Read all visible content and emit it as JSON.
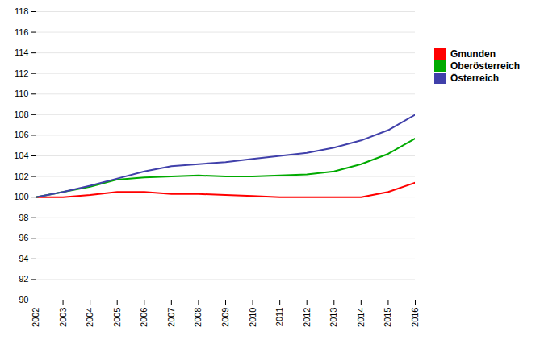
{
  "chart_data": {
    "type": "line",
    "x": [
      2002,
      2003,
      2004,
      2005,
      2006,
      2007,
      2008,
      2009,
      2010,
      2011,
      2012,
      2013,
      2014,
      2015,
      2016
    ],
    "series": [
      {
        "name": "Gmunden",
        "color": "#FF0000",
        "values": [
          100.0,
          100.0,
          100.2,
          100.5,
          100.5,
          100.3,
          100.3,
          100.2,
          100.1,
          100.0,
          100.0,
          100.0,
          100.0,
          100.5,
          101.4
        ]
      },
      {
        "name": "Oberösterreich",
        "color": "#00AA00",
        "values": [
          100.0,
          100.5,
          101.0,
          101.7,
          101.9,
          102.0,
          102.1,
          102.0,
          102.0,
          102.1,
          102.2,
          102.5,
          103.2,
          104.2,
          105.7
        ]
      },
      {
        "name": "Österreich",
        "color": "#4040AA",
        "values": [
          100.0,
          100.5,
          101.1,
          101.8,
          102.5,
          103.0,
          103.2,
          103.4,
          103.7,
          104.0,
          104.3,
          104.8,
          105.5,
          106.5,
          108.0
        ]
      }
    ],
    "xlim": [
      2002,
      2016
    ],
    "xticks": [
      2002,
      2003,
      2004,
      2005,
      2006,
      2007,
      2008,
      2009,
      2010,
      2011,
      2012,
      2013,
      2014,
      2015,
      2016
    ],
    "ylim": [
      90,
      118
    ],
    "yticks": [
      90,
      92,
      94,
      96,
      98,
      100,
      102,
      104,
      106,
      108,
      110,
      112,
      114,
      116,
      118
    ],
    "grid": true,
    "legend": "right"
  }
}
